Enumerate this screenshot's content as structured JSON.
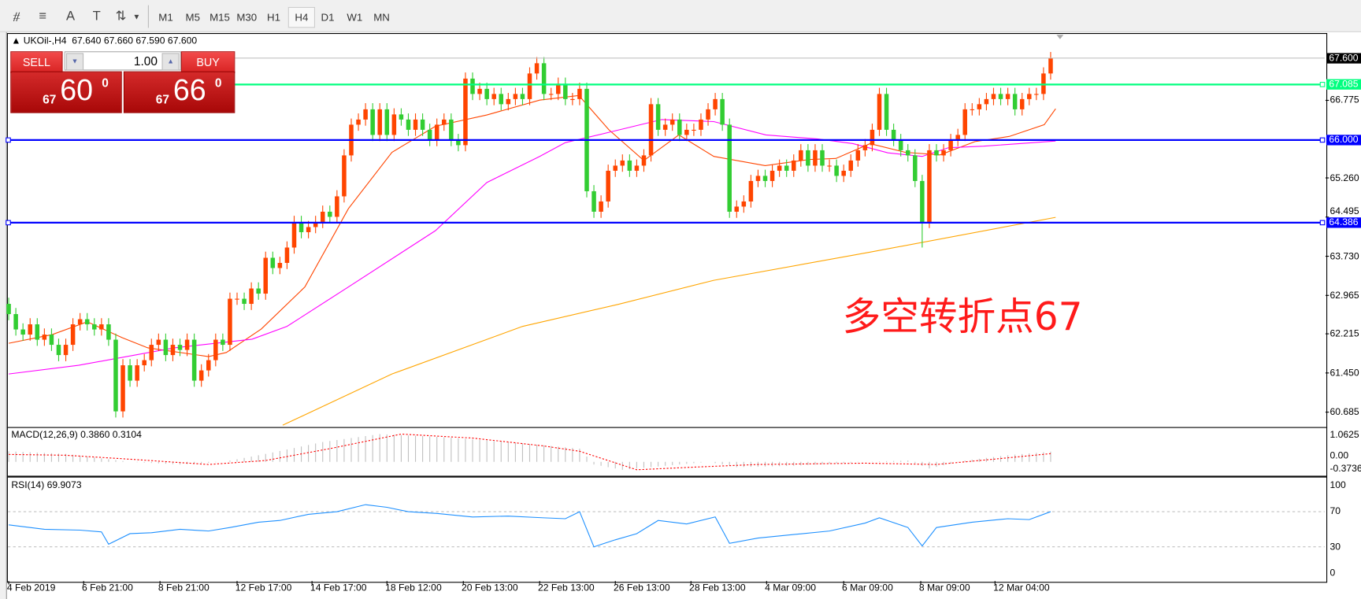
{
  "toolbar": {
    "icons": [
      "elliott-wave-icon",
      "fibonacci-icon",
      "text-icon",
      "text-label-icon",
      "arrows-icon"
    ],
    "icon_glyphs": [
      "⧣",
      "≡",
      "A",
      "T",
      "⇅"
    ],
    "timeframes": [
      "M1",
      "M5",
      "M15",
      "M30",
      "H1",
      "H4",
      "D1",
      "W1",
      "MN"
    ],
    "active_timeframe": "H4"
  },
  "header": {
    "symbol": "UKOil-,H4",
    "ohlc": "67.640 67.660 67.590 67.600"
  },
  "trade_panel": {
    "sell_label": "SELL",
    "buy_label": "BUY",
    "lot": "1.00",
    "sell_big": "67",
    "sell_main": "60",
    "sell_sup": "0",
    "buy_big": "67",
    "buy_main": "66",
    "buy_sup": "0"
  },
  "annotation": "多空转折点67",
  "colors": {
    "bull": "#ff4500",
    "bear": "#32cd32",
    "ma_fast": "#ff4500",
    "ma_mid": "#ff00ff",
    "ma_slow": "#ffa500",
    "support": "#0000ff",
    "pivot": "#00ff7f",
    "rsi": "#1e90ff",
    "macd_signal": "#ff0000",
    "macd_hist": "#c0c0c0"
  },
  "chart_data": {
    "type": "candlestick",
    "symbol": "UKOil-",
    "timeframe": "H4",
    "ylim": [
      60.43,
      68.09
    ],
    "y_ticks": [
      "60.685",
      "61.450",
      "62.215",
      "62.965",
      "63.730",
      "64.495",
      "65.260",
      "66.775"
    ],
    "x_tick_labels": [
      "4 Feb 2019",
      "6 Feb 21:00",
      "8 Feb 21:00",
      "12 Feb 17:00",
      "14 Feb 17:00",
      "18 Feb 12:00",
      "20 Feb 13:00",
      "22 Feb 13:00",
      "26 Feb 13:00",
      "28 Feb 13:00",
      "4 Mar 09:00",
      "6 Mar 09:00",
      "8 Mar 09:00",
      "12 Mar 04:00"
    ],
    "x_tick_bars": [
      0,
      10.5,
      21.2,
      32,
      42.5,
      53,
      63.7,
      74.4,
      85,
      95.6,
      106.2,
      117,
      127.8,
      138.2
    ],
    "close": [
      62.6,
      62.3,
      62.2,
      62.4,
      62.1,
      62.2,
      62.0,
      61.8,
      62.0,
      62.4,
      62.5,
      62.4,
      62.3,
      62.4,
      62.1,
      60.7,
      61.6,
      61.3,
      61.6,
      61.7,
      62.0,
      62.1,
      61.8,
      62.0,
      61.9,
      62.1,
      61.3,
      61.5,
      61.7,
      62.1,
      62.0,
      62.9,
      62.9,
      62.8,
      63.1,
      63.0,
      63.7,
      63.5,
      63.6,
      63.9,
      64.4,
      64.2,
      64.3,
      64.4,
      64.6,
      64.5,
      64.9,
      65.7,
      66.3,
      66.4,
      66.6,
      66.1,
      66.6,
      66.1,
      66.5,
      66.4,
      66.2,
      66.4,
      66.2,
      66.0,
      66.3,
      66.4,
      66.0,
      65.9,
      67.2,
      66.9,
      67.0,
      66.8,
      66.9,
      66.7,
      66.8,
      66.9,
      66.8,
      67.3,
      67.5,
      66.9,
      66.9,
      67.1,
      66.8,
      66.8,
      67.0,
      65.0,
      64.6,
      64.8,
      65.4,
      65.5,
      65.6,
      65.4,
      65.5,
      65.7,
      66.7,
      66.2,
      66.3,
      66.4,
      66.1,
      66.2,
      66.2,
      66.4,
      66.6,
      66.8,
      66.3,
      64.6,
      64.7,
      64.8,
      65.2,
      65.3,
      65.2,
      65.4,
      65.5,
      65.4,
      65.6,
      65.8,
      65.5,
      65.8,
      65.5,
      65.5,
      65.3,
      65.4,
      65.6,
      65.8,
      65.9,
      66.2,
      66.9,
      66.2,
      66.0,
      65.8,
      65.7,
      65.2,
      64.4,
      65.8,
      65.7,
      65.8,
      66.0,
      66.1,
      66.6,
      66.6,
      66.7,
      66.8,
      66.9,
      66.8,
      66.9,
      66.6,
      66.8,
      66.9,
      66.9,
      67.3,
      67.6
    ],
    "last": {
      "open": 67.64,
      "high": 67.66,
      "low": 67.59,
      "close": 67.6
    },
    "moving_averages": [
      {
        "role": "fast",
        "points": [
          [
            0,
            62.03
          ],
          [
            6.1,
            62.2
          ],
          [
            11,
            62.45
          ],
          [
            15.9,
            62.14
          ],
          [
            19.5,
            61.94
          ],
          [
            28,
            61.77
          ],
          [
            30.5,
            61.85
          ],
          [
            35.4,
            62.31
          ],
          [
            41.5,
            63.13
          ],
          [
            47.6,
            64.66
          ],
          [
            53.7,
            65.76
          ],
          [
            59.8,
            66.27
          ],
          [
            67,
            66.49
          ],
          [
            74.4,
            66.78
          ],
          [
            79.9,
            66.87
          ],
          [
            84.1,
            66.2
          ],
          [
            89,
            65.6
          ],
          [
            93.9,
            66.1
          ],
          [
            98.8,
            65.68
          ],
          [
            106,
            65.5
          ],
          [
            112.2,
            65.62
          ],
          [
            115.9,
            65.64
          ],
          [
            120.7,
            65.93
          ],
          [
            125.6,
            65.76
          ],
          [
            130.5,
            65.71
          ],
          [
            135.4,
            65.97
          ],
          [
            140.2,
            66.07
          ],
          [
            145.1,
            66.3
          ],
          [
            146.7,
            66.61
          ]
        ]
      },
      {
        "role": "mid",
        "points": [
          [
            0,
            61.43
          ],
          [
            9.8,
            61.6
          ],
          [
            23.2,
            61.94
          ],
          [
            34.1,
            62.11
          ],
          [
            39,
            62.36
          ],
          [
            47.6,
            63.13
          ],
          [
            59.8,
            64.23
          ],
          [
            67,
            65.17
          ],
          [
            74.4,
            65.68
          ],
          [
            78,
            65.95
          ],
          [
            84.1,
            66.15
          ],
          [
            91.5,
            66.4
          ],
          [
            98.8,
            66.36
          ],
          [
            106.1,
            66.1
          ],
          [
            113.4,
            66.02
          ],
          [
            118.3,
            65.93
          ],
          [
            123.2,
            65.75
          ],
          [
            128,
            65.68
          ],
          [
            131.7,
            65.85
          ],
          [
            136.6,
            65.88
          ],
          [
            146.7,
            65.98
          ]
        ]
      },
      {
        "role": "slow",
        "points": [
          [
            38.4,
            60.43
          ],
          [
            53.7,
            61.43
          ],
          [
            72,
            62.36
          ],
          [
            85.4,
            62.79
          ],
          [
            98.8,
            63.26
          ],
          [
            120.7,
            63.81
          ],
          [
            146.7,
            64.49
          ]
        ]
      }
    ],
    "horizontal_lines": [
      {
        "price": 67.6,
        "label": "67.600",
        "kind": "bid"
      },
      {
        "price": 67.085,
        "label": "67.085",
        "kind": "pivot"
      },
      {
        "price": 66.0,
        "label": "66.000",
        "kind": "support"
      },
      {
        "price": 64.386,
        "label": "64.386",
        "kind": "support"
      }
    ],
    "macd": {
      "title": "MACD(12,26,9) 0.3860 0.3104",
      "ylim": [
        -0.3736,
        1.0625
      ],
      "y_ticks": [
        "1.0625",
        "0.00",
        "-0.3736"
      ],
      "histogram": [
        [
          0,
          0.4
        ],
        [
          8,
          0.3
        ],
        [
          17,
          0.0
        ],
        [
          24,
          -0.1
        ],
        [
          30,
          0.0
        ],
        [
          36,
          0.3
        ],
        [
          44,
          0.75
        ],
        [
          52,
          1.05
        ],
        [
          60,
          0.95
        ],
        [
          70,
          0.75
        ],
        [
          80,
          0.5
        ],
        [
          82,
          -0.1
        ],
        [
          86,
          -0.3
        ],
        [
          92,
          -0.15
        ],
        [
          98,
          0.0
        ],
        [
          102,
          -0.2
        ],
        [
          110,
          -0.15
        ],
        [
          120,
          0.0
        ],
        [
          126,
          0.05
        ],
        [
          129,
          -0.25
        ],
        [
          134,
          0.05
        ],
        [
          140,
          0.25
        ],
        [
          146,
          0.386
        ]
      ],
      "signal": [
        [
          0,
          0.28
        ],
        [
          8,
          0.25
        ],
        [
          17,
          0.1
        ],
        [
          28,
          -0.1
        ],
        [
          36,
          0.05
        ],
        [
          45,
          0.5
        ],
        [
          55,
          1.05
        ],
        [
          65,
          0.9
        ],
        [
          75,
          0.6
        ],
        [
          80,
          0.4
        ],
        [
          88,
          -0.3
        ],
        [
          96,
          -0.2
        ],
        [
          105,
          -0.1
        ],
        [
          120,
          -0.05
        ],
        [
          130,
          -0.1
        ],
        [
          138,
          0.1
        ],
        [
          146,
          0.31
        ]
      ]
    },
    "rsi": {
      "title": "RSI(14) 69.9073",
      "ylim": [
        0,
        100
      ],
      "levels": [
        70,
        30
      ],
      "y_ticks": [
        "100",
        "70",
        "30",
        "0"
      ],
      "points": [
        [
          0,
          55
        ],
        [
          5,
          50
        ],
        [
          10,
          49
        ],
        [
          13,
          47
        ],
        [
          14,
          33
        ],
        [
          17,
          45
        ],
        [
          20,
          46
        ],
        [
          24,
          50
        ],
        [
          28,
          48
        ],
        [
          31,
          52
        ],
        [
          35,
          58
        ],
        [
          38,
          60
        ],
        [
          42,
          67
        ],
        [
          46,
          70
        ],
        [
          50,
          78
        ],
        [
          53,
          75
        ],
        [
          56,
          70
        ],
        [
          60,
          68
        ],
        [
          65,
          64
        ],
        [
          70,
          65
        ],
        [
          75,
          63
        ],
        [
          78,
          62
        ],
        [
          80,
          70
        ],
        [
          82,
          30
        ],
        [
          85,
          38
        ],
        [
          88,
          45
        ],
        [
          91,
          60
        ],
        [
          95,
          56
        ],
        [
          99,
          64
        ],
        [
          101,
          34
        ],
        [
          105,
          40
        ],
        [
          110,
          44
        ],
        [
          115,
          48
        ],
        [
          120,
          57
        ],
        [
          122,
          63
        ],
        [
          126,
          52
        ],
        [
          128,
          31
        ],
        [
          130,
          52
        ],
        [
          135,
          58
        ],
        [
          140,
          62
        ],
        [
          143,
          61
        ],
        [
          146,
          70
        ]
      ]
    }
  }
}
